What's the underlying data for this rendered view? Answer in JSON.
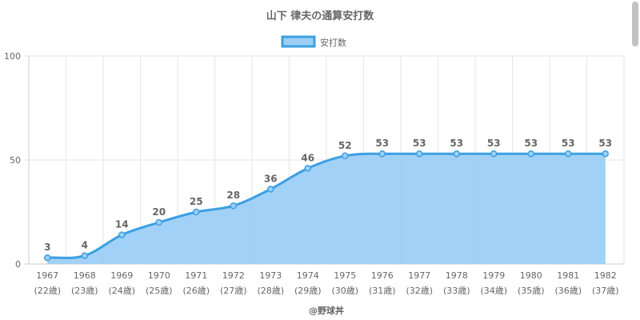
{
  "title": "山下 律夫の通算安打数",
  "credit": "@野球丼",
  "colors": {
    "fill": "#9ccff5",
    "line": "#3c9fe2",
    "grid": "#e6e6e6",
    "axis": "#cccccc",
    "text": "#666666"
  },
  "chart_data": {
    "type": "area",
    "title": "山下 律夫の通算安打数",
    "legend": {
      "position": "top",
      "entries": [
        "安打数"
      ]
    },
    "x": [
      "1967",
      "1968",
      "1969",
      "1970",
      "1971",
      "1972",
      "1973",
      "1974",
      "1975",
      "1976",
      "1977",
      "1978",
      "1979",
      "1980",
      "1981",
      "1982"
    ],
    "x_sublabels": [
      "(22歳)",
      "(23歳)",
      "(24歳)",
      "(25歳)",
      "(26歳)",
      "(27歳)",
      "(28歳)",
      "(29歳)",
      "(30歳)",
      "(31歳)",
      "(32歳)",
      "(33歳)",
      "(34歳)",
      "(35歳)",
      "(36歳)",
      "(37歳)"
    ],
    "series": [
      {
        "name": "安打数",
        "values": [
          3,
          4,
          14,
          20,
          25,
          28,
          36,
          46,
          52,
          53,
          53,
          53,
          53,
          53,
          53,
          53
        ]
      }
    ],
    "ylim": [
      0,
      100
    ],
    "yticks": [
      0,
      50,
      100
    ],
    "grid": true
  }
}
